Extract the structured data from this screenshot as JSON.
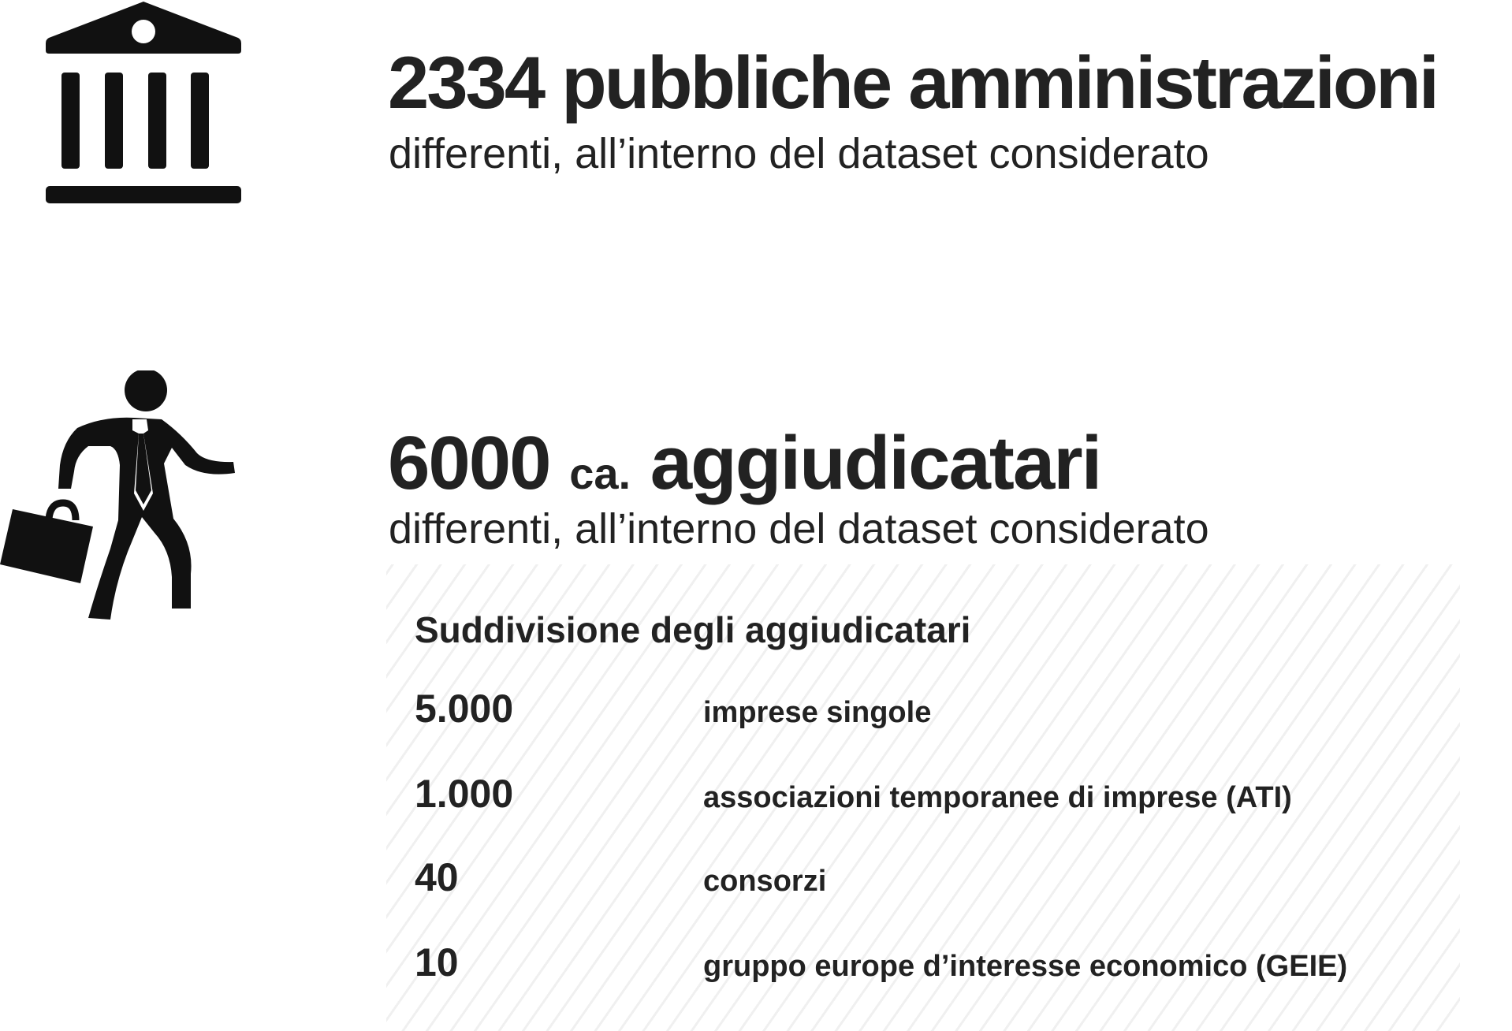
{
  "section_pa": {
    "icon": "government-building-icon",
    "headline": "2334 pubbliche amministrazioni",
    "subline": "differenti, all’interno del dataset considerato"
  },
  "section_aggiudicatari": {
    "icon": "businessman-briefcase-icon",
    "headline_number": "6000",
    "headline_ca": "ca.",
    "headline_word": "aggiudicatari",
    "subline": "differenti, all’interno del dataset considerato"
  },
  "breakdown": {
    "title": "Suddivisione degli aggiudicatari",
    "rows": [
      {
        "value": "5.000",
        "label": "imprese singole"
      },
      {
        "value": "1.000",
        "label": "associazioni temporanee di imprese (ATI)"
      },
      {
        "value": "40",
        "label": "consorzi"
      },
      {
        "value": "10",
        "label": "gruppo europe d’interesse economico (GEIE)"
      }
    ]
  },
  "colors": {
    "text": "#222222",
    "icon": "#111111",
    "background": "#ffffff"
  }
}
